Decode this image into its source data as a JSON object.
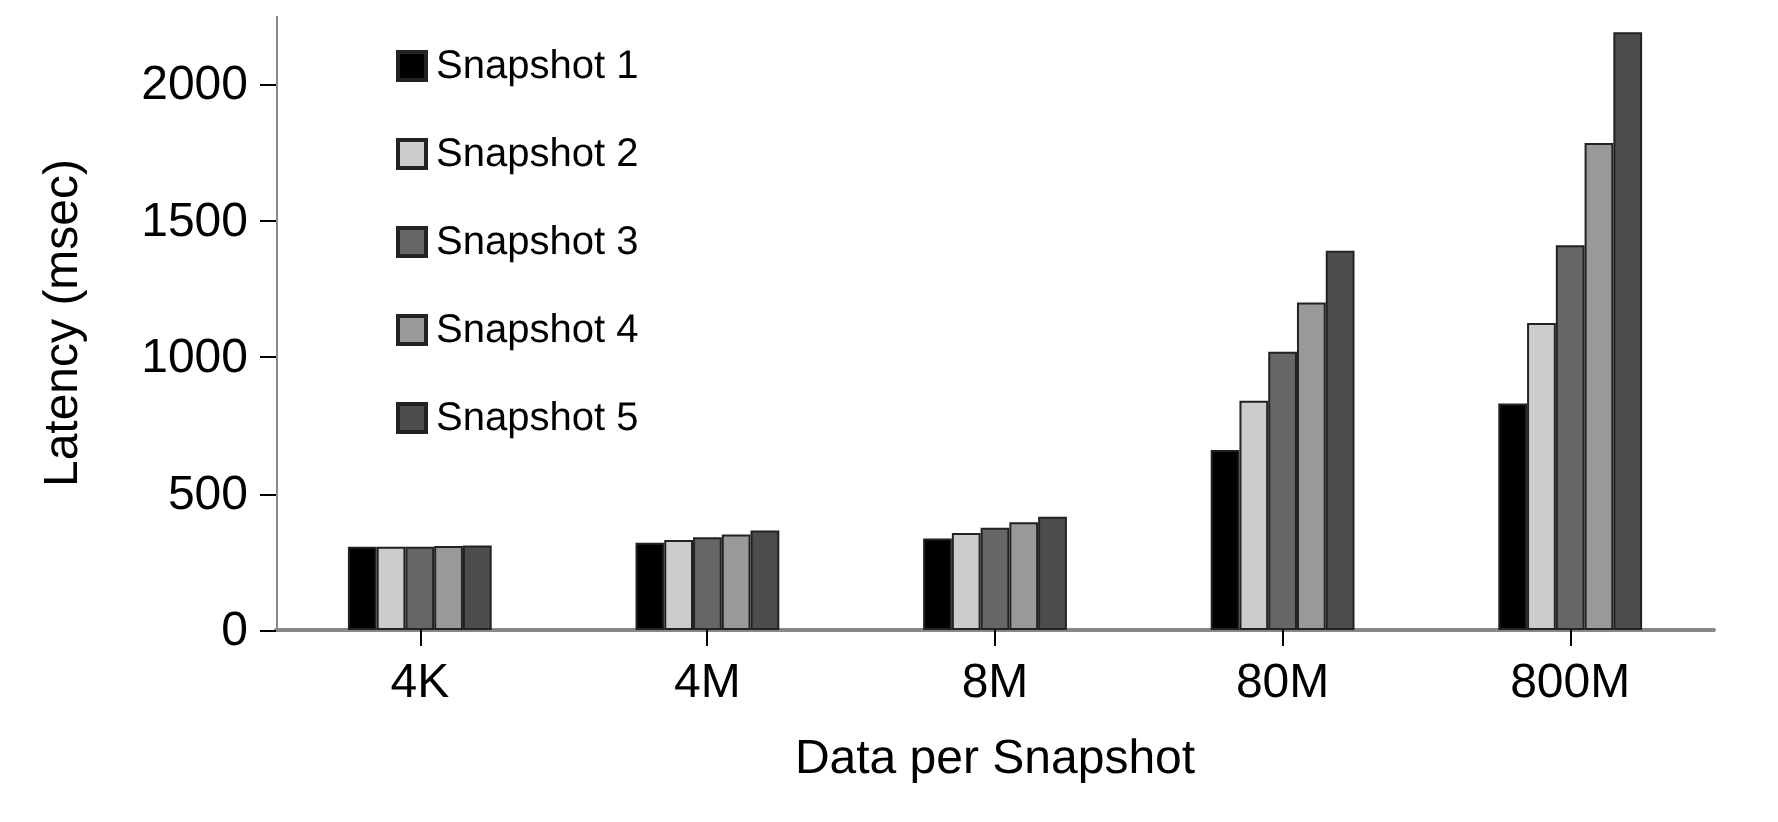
{
  "chart_data": {
    "type": "bar",
    "xlabel": "Data per Snapshot",
    "ylabel": "Latency (msec)",
    "categories": [
      "4K",
      "4M",
      "8M",
      "80M",
      "800M"
    ],
    "series": [
      {
        "name": "Snapshot 1",
        "color": "#000000",
        "values": [
          305,
          320,
          335,
          660,
          830
        ]
      },
      {
        "name": "Snapshot 2",
        "color": "#cccccc",
        "values": [
          305,
          330,
          355,
          840,
          1125
        ]
      },
      {
        "name": "Snapshot 3",
        "color": "#666666",
        "values": [
          305,
          340,
          375,
          1020,
          1410
        ]
      },
      {
        "name": "Snapshot 4",
        "color": "#999999",
        "values": [
          308,
          350,
          395,
          1200,
          1785
        ]
      },
      {
        "name": "Snapshot 5",
        "color": "#4d4d4d",
        "values": [
          310,
          365,
          415,
          1390,
          2190
        ]
      }
    ],
    "ylim": [
      0,
      2250
    ],
    "yticks": [
      0,
      500,
      1000,
      1500,
      2000
    ],
    "grid": false,
    "legend": "top left"
  }
}
